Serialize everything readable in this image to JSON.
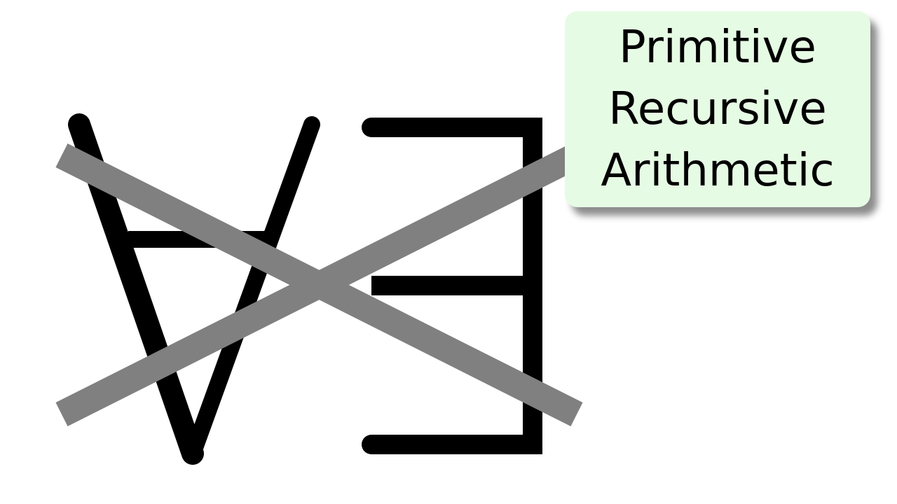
{
  "diagram": {
    "symbols": {
      "forall": {
        "meaning": "universal quantifier",
        "icon": "forall-icon"
      },
      "exists": {
        "meaning": "existential quantifier",
        "icon": "exists-icon"
      },
      "cross_out": {
        "icon": "cross-out-icon"
      }
    },
    "label": {
      "lines": [
        "Primitive",
        "Recursive",
        "Arithmetic"
      ]
    },
    "colors": {
      "symbol_stroke": "#000000",
      "cross_stroke": "#808080",
      "label_background": "#e6fbe4",
      "page_background": "#ffffff"
    }
  }
}
